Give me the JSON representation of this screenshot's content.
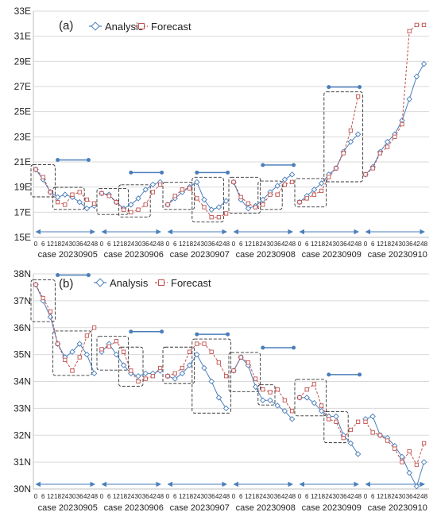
{
  "chart_data": [
    {
      "type": "line",
      "panel_label": "(a)",
      "unit_suffix": "E",
      "ylim": [
        15,
        33
      ],
      "yticks": [
        15,
        17,
        19,
        21,
        23,
        25,
        27,
        29,
        31,
        33
      ],
      "ytick_labels": [
        "15E",
        "17E",
        "19E",
        "21E",
        "23E",
        "25E",
        "27E",
        "29E",
        "31E",
        "33E"
      ],
      "x_tick_labels": [
        "0",
        "6",
        "12",
        "18",
        "24",
        "30",
        "36",
        "42",
        "48"
      ],
      "cases": [
        "case 20230905",
        "case 20230906",
        "case 20230907",
        "case 20230908",
        "case 20230909",
        "case 20230910"
      ],
      "legend": [
        "Analysis",
        "Forecast"
      ],
      "grid": true,
      "colors": {
        "analysis": "#4a7ebb",
        "forecast": "#c0504d",
        "box": "#333333",
        "arrow": "#4a7ebb"
      },
      "series": [
        {
          "name": "Analysis",
          "values": [
            [
              20.4,
              19.6,
              18.6,
              18.2,
              18.4,
              18.2,
              17.8,
              17.3,
              17.5
            ],
            [
              18.5,
              18.4,
              17.8,
              17.3,
              17.6,
              18.1,
              18.8,
              19.2,
              19.4
            ],
            [
              17.6,
              18.1,
              18.6,
              19.0,
              19.4,
              18.0,
              17.2,
              17.4,
              17.9
            ],
            [
              19.4,
              18.0,
              17.3,
              17.5,
              18.0,
              18.6,
              19.1,
              19.6,
              20.0
            ],
            [
              17.8,
              18.3,
              18.8,
              19.3,
              20.0,
              20.5,
              21.8,
              22.6,
              23.2
            ],
            [
              20.0,
              20.6,
              21.8,
              22.6,
              23.2,
              24.3,
              26.0,
              27.8,
              28.8
            ]
          ]
        },
        {
          "name": "Forecast",
          "values": [
            [
              20.4,
              19.8,
              18.6,
              17.8,
              17.6,
              18.4,
              18.6,
              18.0,
              17.7
            ],
            [
              18.5,
              18.3,
              17.8,
              17.2,
              17.0,
              17.2,
              17.6,
              18.6,
              19.2
            ],
            [
              17.6,
              18.3,
              18.8,
              18.9,
              18.1,
              17.4,
              16.6,
              16.6,
              16.9
            ],
            [
              19.4,
              18.2,
              17.7,
              17.4,
              17.6,
              18.4,
              18.4,
              19.2,
              19.4
            ],
            [
              17.8,
              18.1,
              18.4,
              18.7,
              19.8,
              20.5,
              21.7,
              23.5,
              26.2
            ],
            [
              20.0,
              20.5,
              21.7,
              22.2,
              23.0,
              24.0,
              31.4,
              31.9,
              31.9
            ]
          ]
        }
      ],
      "boxes": [
        [
          3,
          6
        ],
        [
          0,
          2
        ],
        [
          3,
          6
        ],
        [
          0,
          3
        ],
        [
          4,
          7
        ],
        [
          0,
          3
        ],
        [
          4,
          6
        ],
        [
          0,
          3
        ],
        [
          4,
          8
        ],
        [
          0,
          3
        ]
      ],
      "bars": [
        [
          0,
          3,
          0,
          7
        ],
        [
          1,
          4,
          1,
          8
        ],
        [
          2,
          4,
          2,
          8
        ],
        [
          3,
          4,
          3,
          8
        ],
        [
          4,
          4,
          4,
          8
        ]
      ]
    },
    {
      "type": "line",
      "panel_label": "(b)",
      "unit_suffix": "N",
      "ylim": [
        30,
        38
      ],
      "yticks": [
        30,
        31,
        32,
        33,
        34,
        35,
        36,
        37,
        38
      ],
      "ytick_labels": [
        "30N",
        "31N",
        "32N",
        "33N",
        "34N",
        "35N",
        "36N",
        "37N",
        "38N"
      ],
      "x_tick_labels": [
        "0",
        "6",
        "12",
        "18",
        "24",
        "30",
        "36",
        "42",
        "48"
      ],
      "cases": [
        "case 20230905",
        "case 20230906",
        "case 20230907",
        "case 20230908",
        "case 20230909",
        "case 20230910"
      ],
      "legend": [
        "Analysis",
        "Forecast"
      ],
      "grid": true,
      "colors": {
        "analysis": "#4a7ebb",
        "forecast": "#c0504d",
        "box": "#333333",
        "arrow": "#4a7ebb"
      },
      "series": [
        {
          "name": "Analysis",
          "values": [
            [
              37.6,
              37.0,
              36.4,
              35.4,
              34.9,
              35.1,
              35.4,
              35.0,
              34.3
            ],
            [
              35.1,
              35.4,
              35.0,
              34.6,
              34.3,
              34.2,
              34.3,
              34.3,
              34.4
            ],
            [
              34.2,
              34.1,
              34.3,
              34.6,
              35.0,
              34.5,
              34.0,
              33.4,
              33.0
            ],
            [
              34.4,
              34.9,
              34.6,
              33.8,
              33.3,
              33.3,
              33.1,
              32.9,
              32.6
            ],
            [
              33.4,
              33.4,
              33.2,
              32.9,
              32.7,
              32.7,
              32.0,
              31.7,
              31.3
            ],
            [
              32.6,
              32.7,
              32.0,
              31.9,
              31.6,
              31.2,
              30.6,
              30.1,
              31.0
            ]
          ]
        },
        {
          "name": "Forecast",
          "values": [
            [
              37.6,
              37.1,
              36.6,
              35.4,
              34.8,
              34.4,
              34.9,
              35.7,
              36.0
            ],
            [
              35.2,
              35.3,
              35.5,
              35.1,
              34.4,
              34.0,
              34.1,
              34.2,
              34.5
            ],
            [
              34.2,
              34.3,
              34.5,
              35.1,
              35.4,
              35.4,
              35.1,
              34.7,
              34.2
            ],
            [
              34.4,
              34.9,
              34.7,
              34.1,
              33.7,
              33.6,
              33.7,
              33.3,
              32.9
            ],
            [
              33.4,
              33.7,
              33.9,
              33.1,
              32.6,
              32.5,
              31.9,
              32.2,
              32.5
            ],
            [
              32.5,
              32.1,
              32.0,
              31.8,
              31.5,
              31.0,
              31.4,
              30.9,
              31.7
            ]
          ]
        }
      ],
      "boxes": [
        [
          3,
          7
        ],
        [
          0,
          2
        ],
        [
          3,
          5
        ],
        [
          0,
          3
        ],
        [
          4,
          8
        ],
        [
          0,
          3
        ],
        [
          4,
          5
        ],
        [
          0,
          3
        ],
        [
          4,
          6
        ],
        [
          0,
          3
        ]
      ],
      "bars": [
        [
          0,
          3,
          0,
          7
        ],
        [
          1,
          4,
          1,
          8
        ],
        [
          2,
          4,
          2,
          8
        ],
        [
          3,
          4,
          3,
          8
        ],
        [
          4,
          4,
          4,
          8
        ]
      ]
    }
  ]
}
